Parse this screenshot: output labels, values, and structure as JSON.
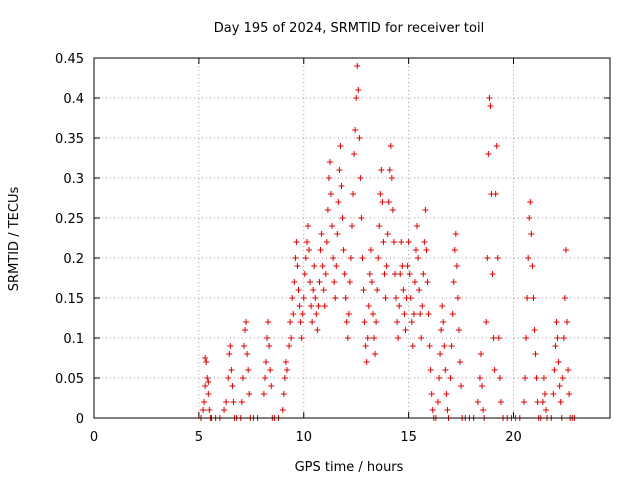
{
  "chart_data": {
    "type": "scatter",
    "title": "Day 195 of 2024, SRMTID for receiver toil",
    "xlabel": "GPS time / hours",
    "ylabel": "SRMTID / TECUs",
    "xlim": [
      0,
      24.6
    ],
    "ylim": [
      0,
      0.45
    ],
    "xticks": [
      0,
      5,
      10,
      15,
      20
    ],
    "yticks": [
      0,
      0.05,
      0.1,
      0.15,
      0.2,
      0.25,
      0.3,
      0.35,
      0.4,
      0.45
    ],
    "xtick_labels": [
      "0",
      "5",
      "10",
      "15",
      "20"
    ],
    "ytick_labels": [
      "0",
      "0.05",
      "0.1",
      "0.15",
      "0.2",
      "0.25",
      "0.3",
      "0.35",
      "0.4",
      "0.45"
    ],
    "grid": true,
    "marker": "+",
    "color": "#e00000",
    "series": [
      {
        "name": "SRMTID",
        "points": [
          [
            5.1,
            0.0
          ],
          [
            5.2,
            0.01
          ],
          [
            5.25,
            0.02
          ],
          [
            5.3,
            0.04
          ],
          [
            5.35,
            0.07
          ],
          [
            5.4,
            0.05
          ],
          [
            5.45,
            0.03
          ],
          [
            5.5,
            0.01
          ],
          [
            5.55,
            0.0
          ],
          [
            5.6,
            0.0
          ],
          [
            5.3,
            0.075
          ],
          [
            5.45,
            0.045
          ],
          [
            5.8,
            0.0
          ],
          [
            6.0,
            0.0
          ],
          [
            6.2,
            0.01
          ],
          [
            6.3,
            0.02
          ],
          [
            6.4,
            0.05
          ],
          [
            6.45,
            0.08
          ],
          [
            6.5,
            0.09
          ],
          [
            6.55,
            0.06
          ],
          [
            6.6,
            0.04
          ],
          [
            6.65,
            0.02
          ],
          [
            6.7,
            0.0
          ],
          [
            6.8,
            0.0
          ],
          [
            7.0,
            0.0
          ],
          [
            7.05,
            0.02
          ],
          [
            7.1,
            0.05
          ],
          [
            7.15,
            0.09
          ],
          [
            7.2,
            0.11
          ],
          [
            7.25,
            0.12
          ],
          [
            7.3,
            0.08
          ],
          [
            7.35,
            0.06
          ],
          [
            7.4,
            0.03
          ],
          [
            7.45,
            0.0
          ],
          [
            7.6,
            0.0
          ],
          [
            7.8,
            0.0
          ],
          [
            8.1,
            0.03
          ],
          [
            8.15,
            0.05
          ],
          [
            8.2,
            0.07
          ],
          [
            8.25,
            0.1
          ],
          [
            8.3,
            0.12
          ],
          [
            8.35,
            0.09
          ],
          [
            8.4,
            0.06
          ],
          [
            8.45,
            0.04
          ],
          [
            8.5,
            0.0
          ],
          [
            8.6,
            0.0
          ],
          [
            8.8,
            0.0
          ],
          [
            9.0,
            0.01
          ],
          [
            9.05,
            0.03
          ],
          [
            9.1,
            0.05
          ],
          [
            9.15,
            0.07
          ],
          [
            9.2,
            0.06
          ],
          [
            9.3,
            0.09
          ],
          [
            9.35,
            0.12
          ],
          [
            9.4,
            0.1
          ],
          [
            9.45,
            0.15
          ],
          [
            9.5,
            0.13
          ],
          [
            9.55,
            0.17
          ],
          [
            9.6,
            0.2
          ],
          [
            9.65,
            0.22
          ],
          [
            9.7,
            0.19
          ],
          [
            9.75,
            0.16
          ],
          [
            9.8,
            0.14
          ],
          [
            9.85,
            0.12
          ],
          [
            9.9,
            0.1
          ],
          [
            9.95,
            0.13
          ],
          [
            10.0,
            0.15
          ],
          [
            10.05,
            0.18
          ],
          [
            10.1,
            0.2
          ],
          [
            10.15,
            0.22
          ],
          [
            10.2,
            0.24
          ],
          [
            10.25,
            0.21
          ],
          [
            10.3,
            0.17
          ],
          [
            10.35,
            0.14
          ],
          [
            10.4,
            0.12
          ],
          [
            10.45,
            0.16
          ],
          [
            10.5,
            0.19
          ],
          [
            10.55,
            0.15
          ],
          [
            10.6,
            0.13
          ],
          [
            10.65,
            0.11
          ],
          [
            10.7,
            0.14
          ],
          [
            10.75,
            0.17
          ],
          [
            10.8,
            0.21
          ],
          [
            10.85,
            0.23
          ],
          [
            10.9,
            0.19
          ],
          [
            10.95,
            0.16
          ],
          [
            11.0,
            0.14
          ],
          [
            11.05,
            0.18
          ],
          [
            11.1,
            0.22
          ],
          [
            11.15,
            0.26
          ],
          [
            11.2,
            0.3
          ],
          [
            11.25,
            0.32
          ],
          [
            11.3,
            0.28
          ],
          [
            11.35,
            0.24
          ],
          [
            11.4,
            0.2
          ],
          [
            11.45,
            0.17
          ],
          [
            11.5,
            0.15
          ],
          [
            11.55,
            0.19
          ],
          [
            11.6,
            0.23
          ],
          [
            11.65,
            0.27
          ],
          [
            11.7,
            0.31
          ],
          [
            11.75,
            0.34
          ],
          [
            11.8,
            0.29
          ],
          [
            11.85,
            0.25
          ],
          [
            11.9,
            0.21
          ],
          [
            11.95,
            0.18
          ],
          [
            12.0,
            0.15
          ],
          [
            12.05,
            0.12
          ],
          [
            12.1,
            0.1
          ],
          [
            12.15,
            0.13
          ],
          [
            12.2,
            0.17
          ],
          [
            12.25,
            0.2
          ],
          [
            12.3,
            0.24
          ],
          [
            12.35,
            0.28
          ],
          [
            12.4,
            0.33
          ],
          [
            12.45,
            0.36
          ],
          [
            12.5,
            0.4
          ],
          [
            12.55,
            0.44
          ],
          [
            12.6,
            0.41
          ],
          [
            12.65,
            0.35
          ],
          [
            12.7,
            0.3
          ],
          [
            12.75,
            0.25
          ],
          [
            12.8,
            0.2
          ],
          [
            12.85,
            0.16
          ],
          [
            12.9,
            0.12
          ],
          [
            12.95,
            0.09
          ],
          [
            13.0,
            0.07
          ],
          [
            13.05,
            0.1
          ],
          [
            13.1,
            0.14
          ],
          [
            13.15,
            0.18
          ],
          [
            13.2,
            0.21
          ],
          [
            13.25,
            0.17
          ],
          [
            13.3,
            0.13
          ],
          [
            13.35,
            0.1
          ],
          [
            13.4,
            0.08
          ],
          [
            13.45,
            0.12
          ],
          [
            13.5,
            0.16
          ],
          [
            13.55,
            0.2
          ],
          [
            13.6,
            0.24
          ],
          [
            13.65,
            0.28
          ],
          [
            13.7,
            0.31
          ],
          [
            13.75,
            0.27
          ],
          [
            13.8,
            0.22
          ],
          [
            13.85,
            0.18
          ],
          [
            13.9,
            0.15
          ],
          [
            13.95,
            0.19
          ],
          [
            14.0,
            0.23
          ],
          [
            14.05,
            0.27
          ],
          [
            14.1,
            0.31
          ],
          [
            14.15,
            0.34
          ],
          [
            14.2,
            0.3
          ],
          [
            14.25,
            0.26
          ],
          [
            14.3,
            0.22
          ],
          [
            14.35,
            0.18
          ],
          [
            14.4,
            0.15
          ],
          [
            14.45,
            0.12
          ],
          [
            14.5,
            0.1
          ],
          [
            14.55,
            0.14
          ],
          [
            14.6,
            0.18
          ],
          [
            14.65,
            0.22
          ],
          [
            14.7,
            0.19
          ],
          [
            14.75,
            0.16
          ],
          [
            14.8,
            0.13
          ],
          [
            14.85,
            0.11
          ],
          [
            14.9,
            0.15
          ],
          [
            14.95,
            0.19
          ],
          [
            15.0,
            0.22
          ],
          [
            15.05,
            0.18
          ],
          [
            15.1,
            0.15
          ],
          [
            15.15,
            0.12
          ],
          [
            15.2,
            0.09
          ],
          [
            15.25,
            0.13
          ],
          [
            15.3,
            0.17
          ],
          [
            15.35,
            0.21
          ],
          [
            15.4,
            0.24
          ],
          [
            15.45,
            0.2
          ],
          [
            15.5,
            0.16
          ],
          [
            15.55,
            0.13
          ],
          [
            15.6,
            0.1
          ],
          [
            15.65,
            0.14
          ],
          [
            15.7,
            0.18
          ],
          [
            15.75,
            0.22
          ],
          [
            15.8,
            0.26
          ],
          [
            15.85,
            0.21
          ],
          [
            15.9,
            0.17
          ],
          [
            15.95,
            0.13
          ],
          [
            16.0,
            0.09
          ],
          [
            16.05,
            0.06
          ],
          [
            16.1,
            0.03
          ],
          [
            16.15,
            0.01
          ],
          [
            16.2,
            0.0
          ],
          [
            16.3,
            0.0
          ],
          [
            16.4,
            0.02
          ],
          [
            16.45,
            0.05
          ],
          [
            16.5,
            0.08
          ],
          [
            16.55,
            0.11
          ],
          [
            16.6,
            0.14
          ],
          [
            16.65,
            0.12
          ],
          [
            16.7,
            0.09
          ],
          [
            16.75,
            0.06
          ],
          [
            16.8,
            0.03
          ],
          [
            16.85,
            0.01
          ],
          [
            16.9,
            0.0
          ],
          [
            17.0,
            0.05
          ],
          [
            17.05,
            0.09
          ],
          [
            17.1,
            0.13
          ],
          [
            17.15,
            0.17
          ],
          [
            17.2,
            0.21
          ],
          [
            17.25,
            0.23
          ],
          [
            17.3,
            0.19
          ],
          [
            17.35,
            0.15
          ],
          [
            17.4,
            0.11
          ],
          [
            17.45,
            0.07
          ],
          [
            17.5,
            0.04
          ],
          [
            17.55,
            0.0
          ],
          [
            17.7,
            0.0
          ],
          [
            17.9,
            0.0
          ],
          [
            18.1,
            0.0
          ],
          [
            18.3,
            0.02
          ],
          [
            18.4,
            0.05
          ],
          [
            18.45,
            0.08
          ],
          [
            18.5,
            0.04
          ],
          [
            18.55,
            0.01
          ],
          [
            18.6,
            0.0
          ],
          [
            18.7,
            0.12
          ],
          [
            18.75,
            0.2
          ],
          [
            18.8,
            0.33
          ],
          [
            18.85,
            0.4
          ],
          [
            18.9,
            0.39
          ],
          [
            18.95,
            0.28
          ],
          [
            19.0,
            0.18
          ],
          [
            19.05,
            0.1
          ],
          [
            19.1,
            0.06
          ],
          [
            19.15,
            0.28
          ],
          [
            19.2,
            0.34
          ],
          [
            19.25,
            0.2
          ],
          [
            19.3,
            0.1
          ],
          [
            19.35,
            0.05
          ],
          [
            19.4,
            0.02
          ],
          [
            19.5,
            0.0
          ],
          [
            19.7,
            0.0
          ],
          [
            19.9,
            0.0
          ],
          [
            20.1,
            0.0
          ],
          [
            20.3,
            0.0
          ],
          [
            20.5,
            0.02
          ],
          [
            20.55,
            0.05
          ],
          [
            20.6,
            0.1
          ],
          [
            20.65,
            0.15
          ],
          [
            20.7,
            0.2
          ],
          [
            20.75,
            0.25
          ],
          [
            20.8,
            0.27
          ],
          [
            20.85,
            0.23
          ],
          [
            20.9,
            0.19
          ],
          [
            20.95,
            0.15
          ],
          [
            21.0,
            0.11
          ],
          [
            21.05,
            0.08
          ],
          [
            21.1,
            0.05
          ],
          [
            21.15,
            0.02
          ],
          [
            21.2,
            0.0
          ],
          [
            21.3,
            0.0
          ],
          [
            21.4,
            0.02
          ],
          [
            21.45,
            0.05
          ],
          [
            21.5,
            0.03
          ],
          [
            21.55,
            0.01
          ],
          [
            21.6,
            0.0
          ],
          [
            21.8,
            0.0
          ],
          [
            21.9,
            0.03
          ],
          [
            21.95,
            0.06
          ],
          [
            22.0,
            0.09
          ],
          [
            22.05,
            0.12
          ],
          [
            22.1,
            0.1
          ],
          [
            22.15,
            0.07
          ],
          [
            22.2,
            0.04
          ],
          [
            22.25,
            0.02
          ],
          [
            22.3,
            0.0
          ],
          [
            22.35,
            0.05
          ],
          [
            22.4,
            0.1
          ],
          [
            22.45,
            0.15
          ],
          [
            22.5,
            0.21
          ],
          [
            22.55,
            0.12
          ],
          [
            22.6,
            0.06
          ],
          [
            22.65,
            0.03
          ],
          [
            22.7,
            0.0
          ],
          [
            22.8,
            0.0
          ],
          [
            22.9,
            0.0
          ]
        ]
      }
    ]
  }
}
